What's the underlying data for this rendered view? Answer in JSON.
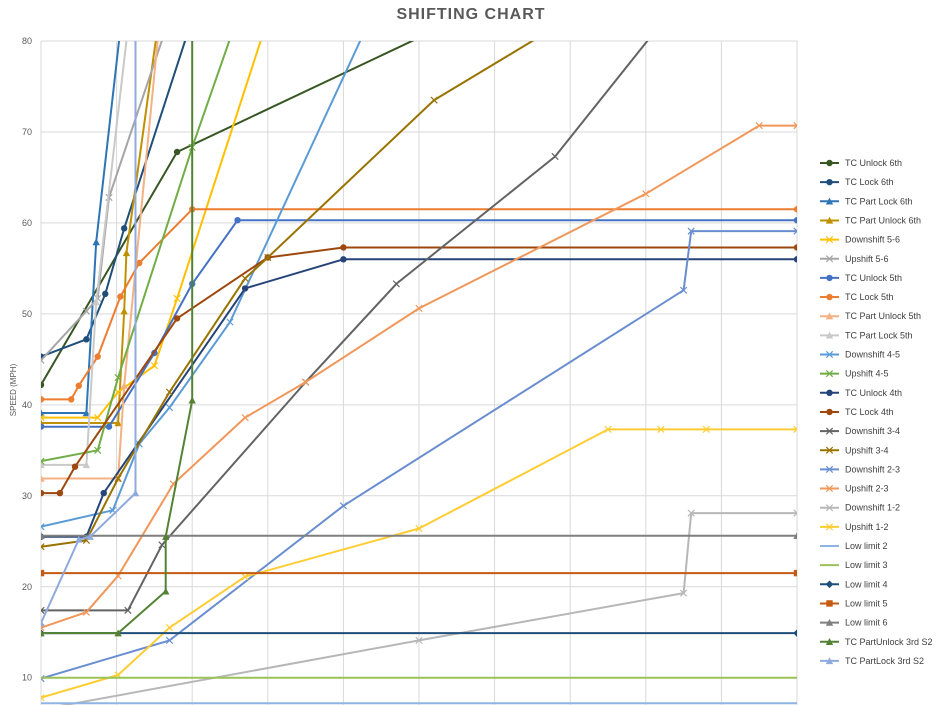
{
  "chart_data": {
    "type": "line",
    "title": "SHIFTING CHART",
    "xlabel": "",
    "ylabel": "SPEED (MPH)",
    "ylim": [
      7,
      80
    ],
    "xlim": [
      0,
      100
    ],
    "y_ticks": [
      10,
      20,
      30,
      40,
      50,
      60,
      70,
      80
    ],
    "grid": true,
    "legend_position": "right",
    "series": [
      {
        "name": "TC Unlock 6th",
        "color": "#375623",
        "marker": "circle",
        "points": [
          [
            0,
            42.2
          ],
          [
            18,
            67.8
          ],
          [
            100,
            100
          ]
        ]
      },
      {
        "name": "TC Lock 6th",
        "color": "#1f4e79",
        "marker": "circle",
        "points": [
          [
            0,
            45.3
          ],
          [
            6,
            47.2
          ],
          [
            8.5,
            52.2
          ],
          [
            11,
            59.4
          ],
          [
            21,
            85
          ]
        ]
      },
      {
        "name": "TC Part Lock 6th",
        "color": "#2e75b6",
        "marker": "triangle",
        "points": [
          [
            0,
            39.1
          ],
          [
            6,
            39.1
          ],
          [
            7.3,
            57.9
          ],
          [
            11,
            85
          ]
        ]
      },
      {
        "name": "TC Part Unlock 6th",
        "color": "#bf9000",
        "marker": "triangle",
        "points": [
          [
            0,
            38.0
          ],
          [
            10.2,
            38.0
          ],
          [
            11,
            50.3
          ],
          [
            11.3,
            56.7
          ],
          [
            16,
            85
          ]
        ]
      },
      {
        "name": "Downshift 5-6",
        "color": "#ffc000",
        "marker": "x",
        "points": [
          [
            0,
            38.6
          ],
          [
            7.5,
            38.6
          ],
          [
            10.2,
            41.4
          ],
          [
            15,
            44.3
          ],
          [
            18,
            51.7
          ],
          [
            31,
            85
          ]
        ]
      },
      {
        "name": "Upshift 5-6",
        "color": "#a5a5a5",
        "marker": "x",
        "points": [
          [
            0,
            44.9
          ],
          [
            6,
            50.3
          ],
          [
            7.5,
            51.7
          ],
          [
            9,
            62.8
          ],
          [
            18,
            85
          ]
        ]
      },
      {
        "name": "TC Unlock 5th",
        "color": "#4472c4",
        "marker": "circle",
        "points": [
          [
            0,
            37.6
          ],
          [
            9,
            37.6
          ],
          [
            15,
            45.7
          ],
          [
            20,
            53.3
          ],
          [
            26,
            60.3
          ],
          [
            100,
            60.3
          ]
        ]
      },
      {
        "name": "TC Lock 5th",
        "color": "#ed7d31",
        "marker": "circle",
        "points": [
          [
            0,
            40.6
          ],
          [
            4,
            40.6
          ],
          [
            5,
            42.1
          ],
          [
            7.5,
            45.3
          ],
          [
            10.5,
            51.9
          ],
          [
            13,
            55.6
          ],
          [
            20,
            61.5
          ],
          [
            100,
            61.5
          ]
        ]
      },
      {
        "name": "TC Part Unlock 5th",
        "color": "#f4b183",
        "marker": "triangle",
        "points": [
          [
            0,
            31.9
          ],
          [
            10.2,
            31.9
          ],
          [
            11,
            42.1
          ],
          [
            16,
            85
          ]
        ]
      },
      {
        "name": "TC Part Lock 5th",
        "color": "#c9c9c9",
        "marker": "triangle",
        "points": [
          [
            0,
            33.4
          ],
          [
            6,
            33.4
          ],
          [
            7.3,
            51.3
          ],
          [
            12,
            85
          ]
        ]
      },
      {
        "name": "Downshift 4-5",
        "color": "#5b9bd5",
        "marker": "x",
        "points": [
          [
            0,
            26.6
          ],
          [
            9.5,
            28.4
          ],
          [
            13,
            35.7
          ],
          [
            17,
            39.7
          ],
          [
            25,
            49.1
          ],
          [
            45,
            85
          ]
        ]
      },
      {
        "name": "Upshift 4-5",
        "color": "#70ad47",
        "marker": "x",
        "points": [
          [
            0,
            33.8
          ],
          [
            7.5,
            35.0
          ],
          [
            10.2,
            43.0
          ],
          [
            20,
            68.3
          ],
          [
            27,
            85
          ]
        ]
      },
      {
        "name": "TC Unlock 4th",
        "color": "#264478",
        "marker": "circle",
        "points": [
          [
            0,
            25.5
          ],
          [
            6,
            25.5
          ],
          [
            8.3,
            30.3
          ],
          [
            27,
            52.8
          ],
          [
            40,
            56.0
          ],
          [
            100,
            56.0
          ]
        ]
      },
      {
        "name": "TC Lock 4th",
        "color": "#9e480e",
        "marker": "circle",
        "points": [
          [
            0,
            30.3
          ],
          [
            2.5,
            30.3
          ],
          [
            4.5,
            33.2
          ],
          [
            18,
            49.5
          ],
          [
            30,
            56.2
          ],
          [
            40,
            57.3
          ],
          [
            100,
            57.3
          ]
        ]
      },
      {
        "name": "Downshift 3-4",
        "color": "#636363",
        "marker": "x",
        "points": [
          [
            0,
            17.4
          ],
          [
            11.5,
            17.4
          ],
          [
            16,
            24.6
          ],
          [
            35,
            42.5
          ],
          [
            47,
            53.3
          ],
          [
            68,
            67.3
          ],
          [
            85,
            85
          ]
        ]
      },
      {
        "name": "Upshift 3-4",
        "color": "#997300",
        "marker": "x",
        "points": [
          [
            0,
            24.4
          ],
          [
            6,
            25.1
          ],
          [
            10.2,
            31.9
          ],
          [
            17,
            41.4
          ],
          [
            27,
            53.9
          ],
          [
            30,
            56.2
          ],
          [
            52,
            73.5
          ],
          [
            75,
            85
          ]
        ]
      },
      {
        "name": "Downshift 2-3",
        "color": "#698ed0",
        "marker": "x",
        "points": [
          [
            0,
            9.9
          ],
          [
            17,
            14.1
          ],
          [
            40,
            28.9
          ],
          [
            85,
            52.6
          ],
          [
            86,
            59.1
          ],
          [
            100,
            59.1
          ]
        ]
      },
      {
        "name": "Upshift 2-3",
        "color": "#f1975a",
        "marker": "x",
        "points": [
          [
            0,
            15.5
          ],
          [
            6,
            17.2
          ],
          [
            10.2,
            21.2
          ],
          [
            17.5,
            31.3
          ],
          [
            27,
            38.6
          ],
          [
            35,
            42.5
          ],
          [
            50,
            50.6
          ],
          [
            80,
            63.2
          ],
          [
            95,
            70.7
          ],
          [
            100,
            70.7
          ]
        ]
      },
      {
        "name": "Downshift 1-2",
        "color": "#b7b7b7",
        "marker": "x",
        "points": [
          [
            0,
            6.5
          ],
          [
            50,
            14.1
          ],
          [
            85,
            19.3
          ],
          [
            86,
            28.1
          ],
          [
            100,
            28.1
          ]
        ]
      },
      {
        "name": "Upshift 1-2",
        "color": "#ffcd33",
        "marker": "x",
        "points": [
          [
            0,
            7.8
          ],
          [
            10.2,
            10.3
          ],
          [
            17,
            15.5
          ],
          [
            27,
            21.1
          ],
          [
            50,
            26.4
          ],
          [
            75,
            37.3
          ],
          [
            82,
            37.3
          ],
          [
            88,
            37.3
          ],
          [
            100,
            37.3
          ]
        ]
      },
      {
        "name": "Low limit 2",
        "color": "#8eb4e3",
        "marker": "none",
        "points": [
          [
            0,
            7.2
          ],
          [
            100,
            7.2
          ]
        ]
      },
      {
        "name": "Low limit 3",
        "color": "#9bc159",
        "marker": "none",
        "points": [
          [
            0,
            10.0
          ],
          [
            100,
            10.0
          ]
        ]
      },
      {
        "name": "Low limit 4",
        "color": "#1f4e79",
        "marker": "diamond",
        "points": [
          [
            0,
            14.9
          ],
          [
            100,
            14.9
          ]
        ]
      },
      {
        "name": "Low limit 5",
        "color": "#c55a11",
        "marker": "square",
        "points": [
          [
            0,
            21.5
          ],
          [
            100,
            21.5
          ]
        ]
      },
      {
        "name": "Low limit 6",
        "color": "#7f7f7f",
        "marker": "triangle",
        "points": [
          [
            0,
            25.6
          ],
          [
            100,
            25.6
          ]
        ]
      },
      {
        "name": "TC PartUnlock 3rd S2",
        "color": "#548235",
        "marker": "triangle",
        "points": [
          [
            0,
            14.9
          ],
          [
            10.2,
            14.9
          ],
          [
            16.5,
            19.5
          ],
          [
            16.5,
            25.5
          ],
          [
            20,
            40.5
          ],
          [
            20,
            85
          ]
        ]
      },
      {
        "name": "TC PartLock 3rd S2",
        "color": "#8faadc",
        "marker": "triangle",
        "points": [
          [
            0,
            16.0
          ],
          [
            5,
            25.2
          ],
          [
            6.5,
            25.5
          ],
          [
            12.5,
            30.3
          ],
          [
            12.5,
            85
          ]
        ]
      }
    ]
  }
}
